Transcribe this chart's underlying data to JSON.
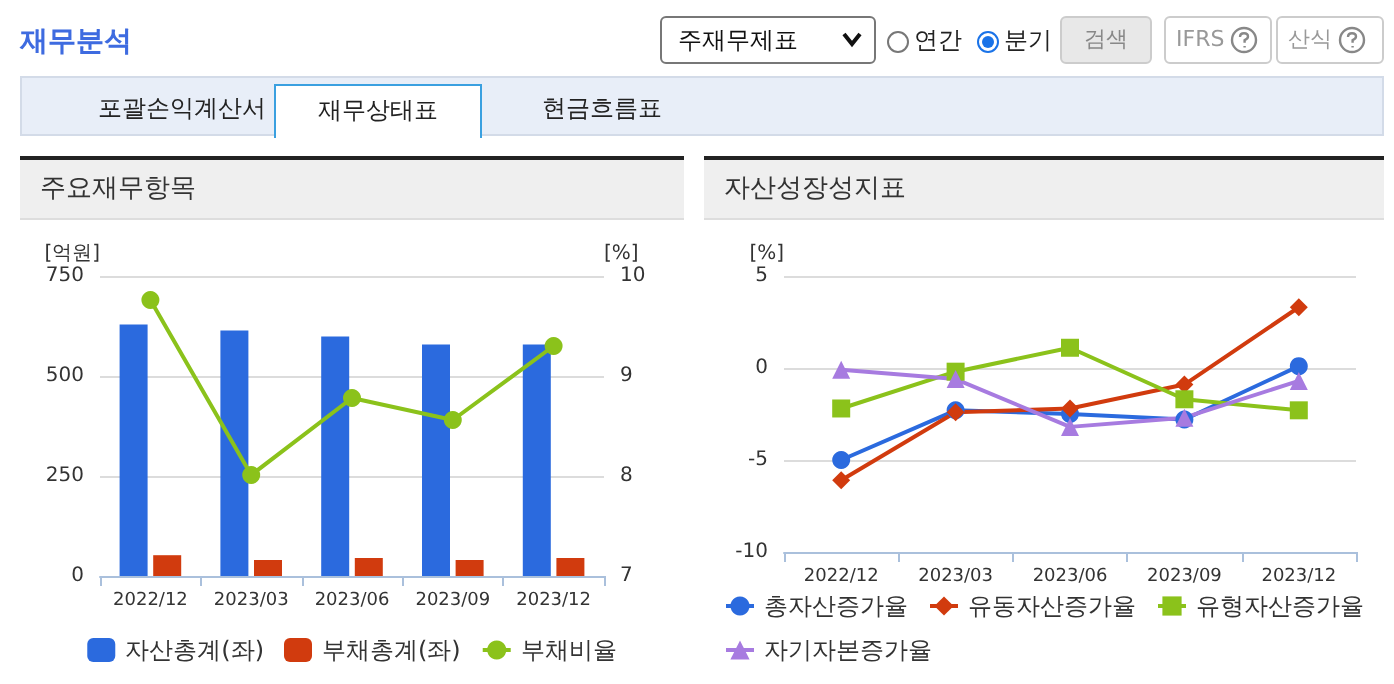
{
  "chart_data": [
    {
      "type": "other",
      "title": "재무분석",
      "annotations": [
        "주재무제표",
        "연간",
        "분기",
        "검색",
        "IFRS",
        "산식",
        "포괄손익계산서",
        "재무상태표",
        "현금흐름표"
      ]
    },
    {
      "type": "bar",
      "title": "주요재무항목",
      "ylabel": "[억원]",
      "y2label": "[%]",
      "categories": [
        "2022/12",
        "2023/03",
        "2023/06",
        "2023/09",
        "2023/12"
      ],
      "series": [
        {
          "name": "자산총계(좌)",
          "color": "#2b6ade",
          "values": [
            629,
            614,
            599,
            579,
            579
          ]
        },
        {
          "name": "부채총계(좌)",
          "color": "#d13b0e",
          "values": [
            52,
            40,
            45,
            40,
            45
          ]
        },
        {
          "name": "부채비율",
          "type": "line",
          "axis": "y2",
          "color": "#8bc21b",
          "marker": "circle",
          "values": [
            9.76,
            8.01,
            8.78,
            8.56,
            9.3
          ]
        }
      ],
      "ylim": [
        0,
        750
      ],
      "yticks": [
        0,
        250,
        500,
        750
      ],
      "y2lim": [
        7,
        10
      ],
      "y2ticks": [
        7,
        8,
        9,
        10
      ],
      "grid": "y",
      "legend": "bottom"
    },
    {
      "type": "line",
      "title": "자산성장성지표",
      "ylabel": "[%]",
      "categories": [
        "2022/12",
        "2023/03",
        "2023/06",
        "2023/09",
        "2023/12"
      ],
      "series": [
        {
          "name": "총자산증가율",
          "color": "#2b6ade",
          "marker": "circle",
          "values": [
            -5,
            -2.3,
            -2.5,
            -2.8,
            0.1
          ]
        },
        {
          "name": "유동자산증가율",
          "color": "#d13b0e",
          "marker": "diamond",
          "values": [
            -6.1,
            -2.4,
            -2.2,
            -0.9,
            3.3
          ]
        },
        {
          "name": "유형자산증가율",
          "color": "#8bc21b",
          "marker": "square",
          "values": [
            -2.2,
            -0.2,
            1.1,
            -1.7,
            -2.3
          ]
        },
        {
          "name": "자기자본증가율",
          "color": "#a77be0",
          "marker": "triangle",
          "values": [
            -0.1,
            -0.6,
            -3.2,
            -2.7,
            -0.7
          ]
        }
      ],
      "ylim": [
        -10,
        5
      ],
      "yticks": [
        -10,
        -5,
        0,
        5
      ],
      "grid": "y",
      "legend": "bottom"
    }
  ]
}
